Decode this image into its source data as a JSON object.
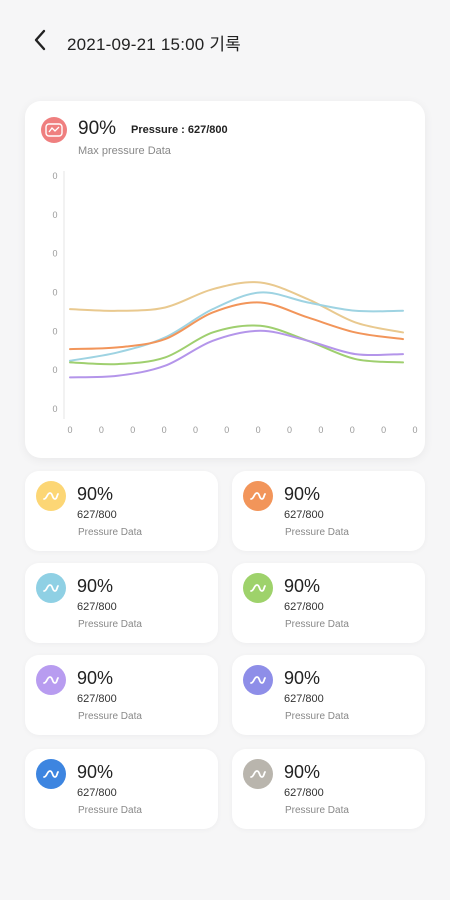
{
  "header": {
    "title": "2021-09-21 15:00 기록"
  },
  "summary": {
    "percent": "90%",
    "pressure": "Pressure : 627/800",
    "subtitle": "Max pressure Data",
    "icon": "pressure-gauge-icon",
    "icon_color": "#ef7f7f"
  },
  "chart_data": {
    "type": "line",
    "title": "",
    "xlabel": "",
    "ylabel": "",
    "x_ticks": [
      "0",
      "0",
      "0",
      "0",
      "0",
      "0",
      "0",
      "0",
      "0",
      "0",
      "0",
      "0"
    ],
    "y_ticks": [
      "0",
      "0",
      "0",
      "0",
      "0",
      "0",
      "0"
    ],
    "ylim": [
      0,
      7
    ],
    "grid": false,
    "series": [
      {
        "color": "#e9c98f",
        "values": [
          3.0,
          2.95,
          3.05,
          3.6,
          3.8,
          3.3,
          2.6,
          2.3
        ]
      },
      {
        "color": "#9ed3e2",
        "values": [
          1.45,
          1.7,
          2.15,
          3.0,
          3.5,
          3.2,
          2.95,
          2.95
        ]
      },
      {
        "color": "#f2955a",
        "values": [
          1.8,
          1.85,
          2.1,
          2.9,
          3.2,
          2.75,
          2.3,
          2.1
        ]
      },
      {
        "color": "#9fcf6f",
        "values": [
          1.4,
          1.35,
          1.55,
          2.3,
          2.5,
          2.05,
          1.5,
          1.4
        ]
      },
      {
        "color": "#b495ea",
        "values": [
          0.95,
          1.0,
          1.3,
          2.05,
          2.35,
          2.05,
          1.65,
          1.65
        ]
      }
    ]
  },
  "tiles": [
    {
      "color": "#fcd675",
      "percent": "90%",
      "value": "627/800",
      "label": "Pressure Data",
      "icon": "wave-icon"
    },
    {
      "color": "#f2955a",
      "percent": "90%",
      "value": "627/800",
      "label": "Pressure Data",
      "icon": "wave-icon"
    },
    {
      "color": "#8fd0e4",
      "percent": "90%",
      "value": "627/800",
      "label": "Pressure Data",
      "icon": "wave-icon"
    },
    {
      "color": "#9ed26b",
      "percent": "90%",
      "value": "627/800",
      "label": "Pressure Data",
      "icon": "wave-icon"
    },
    {
      "color": "#b89cf0",
      "percent": "90%",
      "value": "627/800",
      "label": "Pressure Data",
      "icon": "wave-icon"
    },
    {
      "color": "#8e8ee8",
      "percent": "90%",
      "value": "627/800",
      "label": "Pressure Data",
      "icon": "wave-icon"
    },
    {
      "color": "#3d85e0",
      "percent": "90%",
      "value": "627/800",
      "label": "Pressure Data",
      "icon": "wave-icon"
    },
    {
      "color": "#b9b5ad",
      "percent": "90%",
      "value": "627/800",
      "label": "Pressure Data",
      "icon": "wave-icon"
    }
  ]
}
